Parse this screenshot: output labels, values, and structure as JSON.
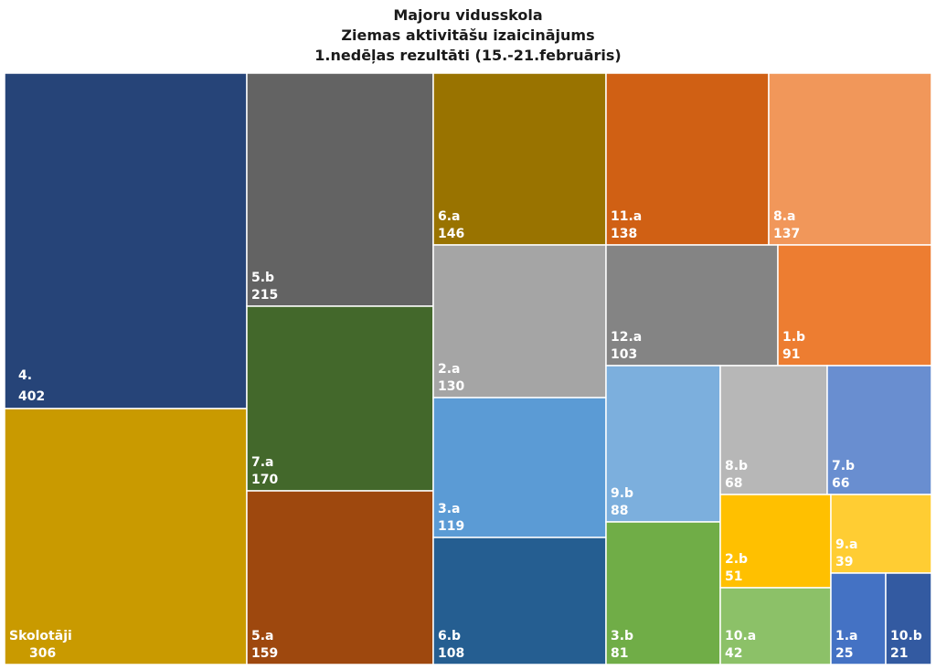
{
  "title_lines": [
    "Majoru vidusskola",
    "Ziemas aktivitāšu izaicinājums",
    "1.nedēļas rezultāti (15.-21.februāris)"
  ],
  "chart_data": {
    "type": "treemap",
    "title": "Majoru vidusskola Ziemas aktivitāšu izaicinājums 1.nedēļas rezultāti (15.-21.februāris)",
    "items": [
      {
        "name": "4.",
        "value": 402,
        "color": "#264478"
      },
      {
        "name": "Skolotāji",
        "value": 306,
        "color": "#C99A00"
      },
      {
        "name": "5.b",
        "value": 215,
        "color": "#636363"
      },
      {
        "name": "7.a",
        "value": 170,
        "color": "#43682B"
      },
      {
        "name": "5.a",
        "value": 159,
        "color": "#9E480E"
      },
      {
        "name": "6.a",
        "value": 146,
        "color": "#997300"
      },
      {
        "name": "11.a",
        "value": 138,
        "color": "#D06014"
      },
      {
        "name": "8.a",
        "value": 137,
        "color": "#F1975A"
      },
      {
        "name": "2.a",
        "value": 130,
        "color": "#A5A5A5"
      },
      {
        "name": "12.a",
        "value": 103,
        "color": "#848484"
      },
      {
        "name": "1.b",
        "value": 91,
        "color": "#ED7D31"
      },
      {
        "name": "3.a",
        "value": 119,
        "color": "#5B9BD5"
      },
      {
        "name": "6.b",
        "value": 108,
        "color": "#255E91"
      },
      {
        "name": "9.b",
        "value": 88,
        "color": "#7CAFDD"
      },
      {
        "name": "3.b",
        "value": 81,
        "color": "#70AD47"
      },
      {
        "name": "8.b",
        "value": 68,
        "color": "#B7B7B7"
      },
      {
        "name": "7.b",
        "value": 66,
        "color": "#698ED0"
      },
      {
        "name": "2.b",
        "value": 51,
        "color": "#FFC000"
      },
      {
        "name": "9.a",
        "value": 39,
        "color": "#FFCD33"
      },
      {
        "name": "10.a",
        "value": 42,
        "color": "#8CC168"
      },
      {
        "name": "1.a",
        "value": 25,
        "color": "#4472C4"
      },
      {
        "name": "10.b",
        "value": 21,
        "color": "#335AA1"
      }
    ]
  }
}
